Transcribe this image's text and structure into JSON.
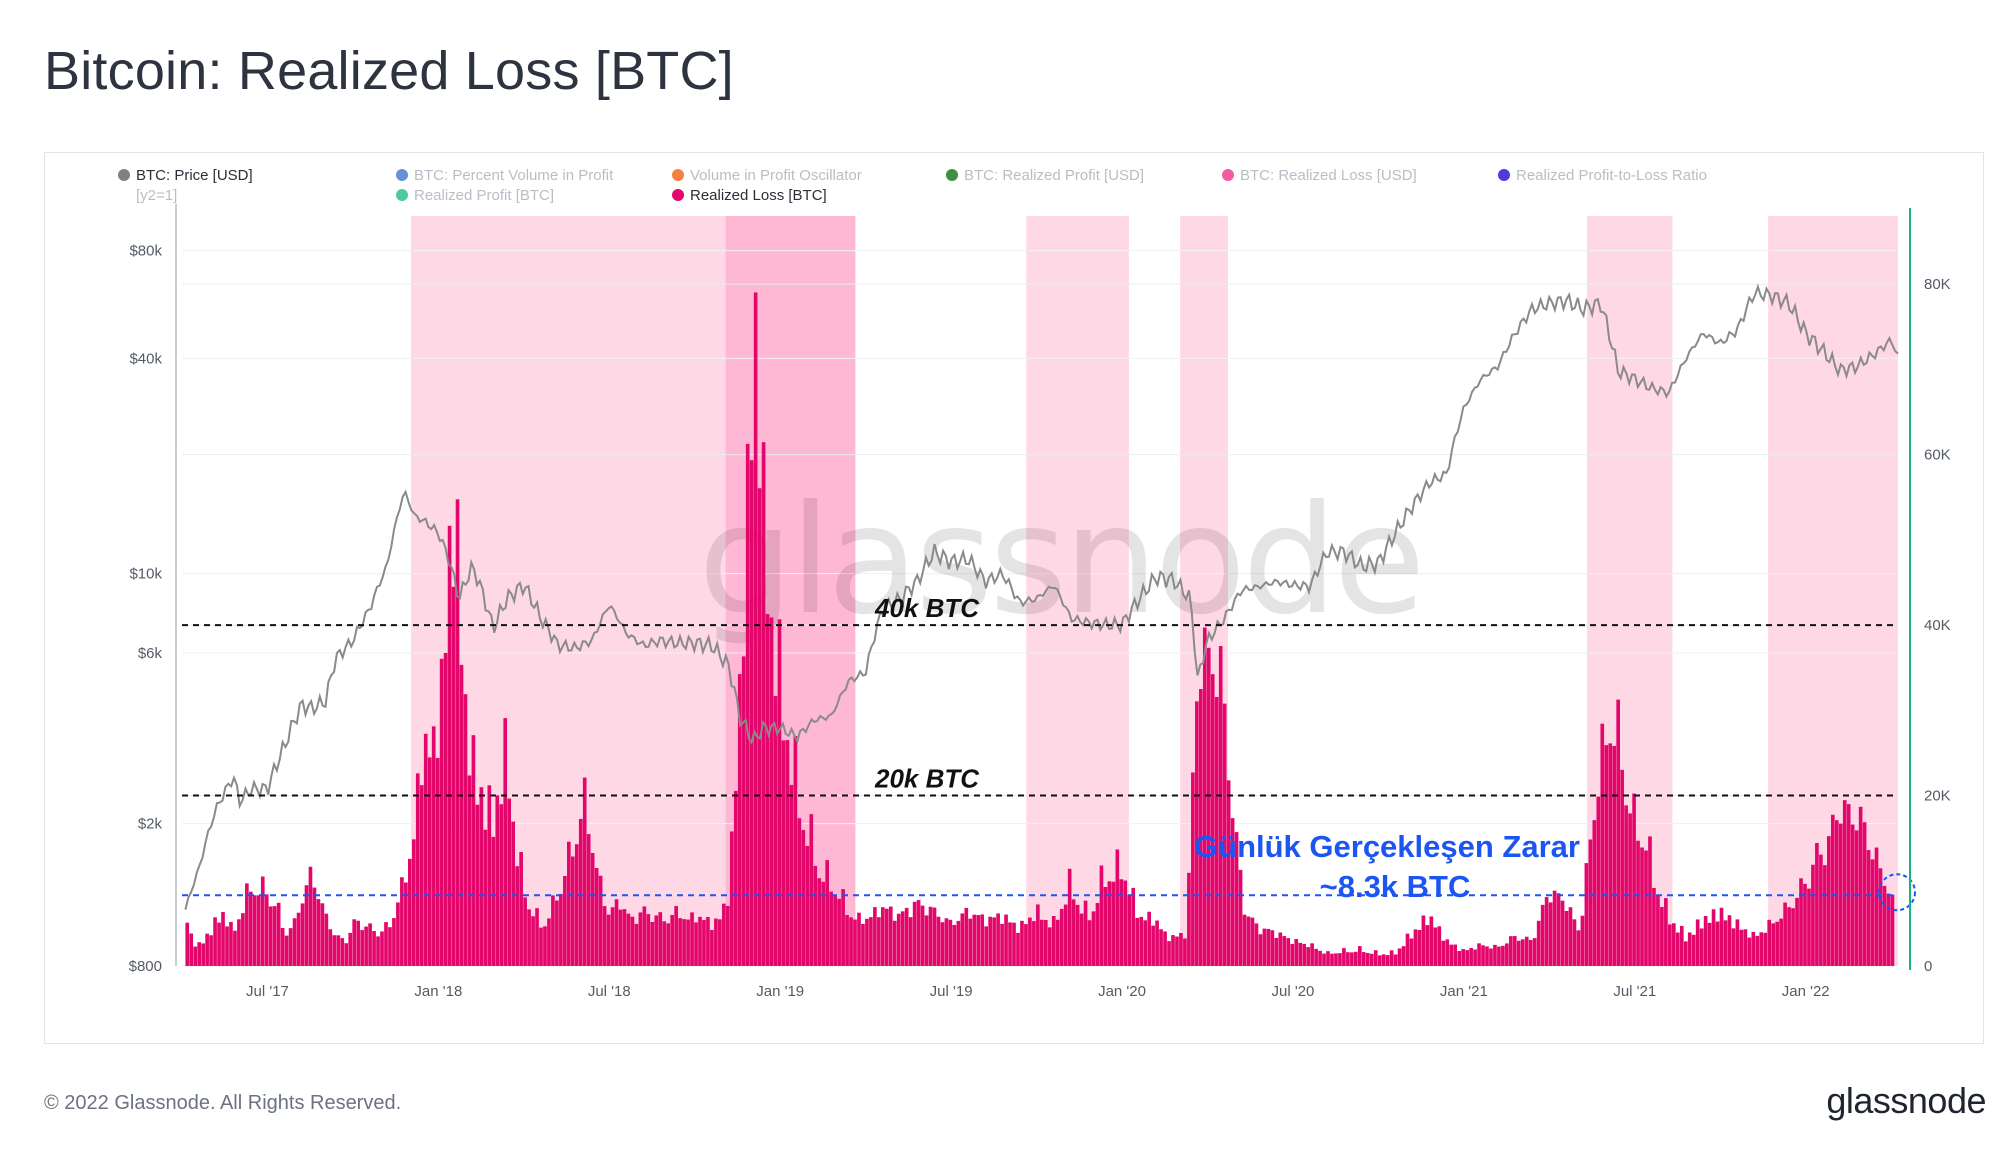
{
  "page": {
    "title": "Bitcoin: Realized Loss [BTC]",
    "copyright": "© 2022 Glassnode. All Rights Reserved.",
    "logo_text": "glassnode",
    "watermark": "glassnode"
  },
  "colors": {
    "price_line": "#8a8a8a",
    "loss_bars": "#e3076b",
    "shade": "#ffc9dd",
    "shade_dark": "#ff9cc3",
    "right_axis": "#19b37d",
    "annotation_blue": "#1c55f2",
    "dashed_black": "#111111"
  },
  "chart_data": {
    "type": "bar",
    "title": "Bitcoin: Realized Loss [BTC]",
    "legend": [
      {
        "label": "BTC: Price [USD]",
        "sub": "[y2=1]",
        "color": "#808080",
        "active": true
      },
      {
        "label": "BTC: Percent Volume in Profit",
        "color": "#4a7fd0",
        "active": false
      },
      {
        "label": "Realized Profit [BTC]",
        "color": "#2ec28b",
        "active": false
      },
      {
        "label": "Volume in Profit Oscillator",
        "color": "#f26b1d",
        "active": false
      },
      {
        "label": "Realized Loss [BTC]",
        "color": "#e3076b",
        "active": true
      },
      {
        "label": "BTC: Realized Profit [USD]",
        "color": "#1e7a1e",
        "active": false
      },
      {
        "label": "BTC: Realized Loss [USD]",
        "color": "#f23f8f",
        "active": false
      },
      {
        "label": "Realized Profit-to-Loss Ratio",
        "color": "#2b1bd6",
        "active": false
      }
    ],
    "x_ticks": [
      "Jul '17",
      "Jan '18",
      "Jul '18",
      "Jan '19",
      "Jul '19",
      "Jan '20",
      "Jul '20",
      "Jan '21",
      "Jul '21",
      "Jan '22"
    ],
    "x_tick_times": [
      2017.5,
      2018.0,
      2018.5,
      2019.0,
      2019.5,
      2020.0,
      2020.5,
      2021.0,
      2021.5,
      2022.0
    ],
    "x_range": [
      2017.25,
      2022.27
    ],
    "y_left_ticks": [
      "$80k",
      "$40k",
      "$10k",
      "$6k",
      "$2k",
      "$800"
    ],
    "y_left_tick_values": [
      80000,
      40000,
      10000,
      6000,
      2000,
      800
    ],
    "y_left_scale": "log",
    "y_left_range": [
      800,
      100000
    ],
    "y_right_ticks": [
      "80K",
      "60K",
      "40K",
      "20K",
      "0"
    ],
    "y_right_tick_values": [
      80000,
      60000,
      40000,
      20000,
      0
    ],
    "y_right_range": [
      0,
      88000
    ],
    "price_series": {
      "name": "BTC: Price [USD]",
      "t": [
        2017.26,
        2017.3,
        2017.35,
        2017.4,
        2017.42,
        2017.45,
        2017.5,
        2017.55,
        2017.6,
        2017.63,
        2017.67,
        2017.7,
        2017.75,
        2017.8,
        2017.85,
        2017.9,
        2017.93,
        2017.96,
        2017.98,
        2018.0,
        2018.03,
        2018.06,
        2018.1,
        2018.13,
        2018.16,
        2018.2,
        2018.25,
        2018.3,
        2018.35,
        2018.4,
        2018.45,
        2018.5,
        2018.55,
        2018.6,
        2018.65,
        2018.7,
        2018.75,
        2018.8,
        2018.85,
        2018.88,
        2018.92,
        2018.95,
        2019.0,
        2019.05,
        2019.1,
        2019.15,
        2019.2,
        2019.25,
        2019.3,
        2019.35,
        2019.4,
        2019.45,
        2019.5,
        2019.55,
        2019.6,
        2019.65,
        2019.7,
        2019.75,
        2019.8,
        2019.85,
        2019.9,
        2019.95,
        2020.0,
        2020.05,
        2020.1,
        2020.15,
        2020.2,
        2020.22,
        2020.25,
        2020.3,
        2020.35,
        2020.4,
        2020.45,
        2020.5,
        2020.55,
        2020.6,
        2020.65,
        2020.7,
        2020.75,
        2020.8,
        2020.85,
        2020.9,
        2020.95,
        2021.0,
        2021.05,
        2021.1,
        2021.15,
        2021.2,
        2021.25,
        2021.3,
        2021.35,
        2021.4,
        2021.45,
        2021.5,
        2021.55,
        2021.6,
        2021.65,
        2021.7,
        2021.75,
        2021.8,
        2021.85,
        2021.9,
        2021.95,
        2022.0,
        2022.05,
        2022.1,
        2022.15,
        2022.2,
        2022.25,
        2022.27
      ],
      "v": [
        1150,
        1500,
        2200,
        2700,
        2300,
        2500,
        2500,
        3300,
        4300,
        4200,
        4400,
        5800,
        6500,
        8000,
        10500,
        17000,
        14500,
        14000,
        13500,
        13000,
        11000,
        8500,
        10500,
        8800,
        7000,
        8500,
        9300,
        7500,
        6300,
        6200,
        6500,
        8200,
        6800,
        6300,
        6500,
        6400,
        6400,
        6300,
        5500,
        4000,
        3400,
        3700,
        3700,
        3500,
        3900,
        4000,
        5000,
        5300,
        8000,
        8500,
        9500,
        11500,
        10800,
        11000,
        9500,
        10000,
        8300,
        8500,
        9300,
        7500,
        7300,
        7200,
        7200,
        8500,
        9800,
        9600,
        8500,
        5000,
        6500,
        7500,
        9000,
        9200,
        9500,
        9300,
        9200,
        11500,
        11500,
        10500,
        10700,
        13000,
        15500,
        18000,
        19000,
        29000,
        35000,
        38000,
        47000,
        55000,
        57000,
        58000,
        55000,
        57000,
        37000,
        35000,
        33000,
        32000,
        40000,
        47000,
        44000,
        48000,
        61000,
        60000,
        57000,
        47000,
        42000,
        37000,
        38000,
        41000,
        45000,
        40500
      ]
    },
    "loss_series": {
      "name": "Realized Loss [BTC]",
      "t": [
        2017.26,
        2017.28,
        2017.3,
        2017.33,
        2017.37,
        2017.4,
        2017.45,
        2017.5,
        2017.53,
        2017.55,
        2017.58,
        2017.6,
        2017.63,
        2017.67,
        2017.7,
        2017.73,
        2017.76,
        2017.8,
        2017.83,
        2017.86,
        2017.9,
        2017.93,
        2017.96,
        2017.99,
        2018.02,
        2018.05,
        2018.08,
        2018.1,
        2018.13,
        2018.16,
        2018.2,
        2018.23,
        2018.26,
        2018.3,
        2018.33,
        2018.36,
        2018.4,
        2018.43,
        2018.46,
        2018.5,
        2018.53,
        2018.56,
        2018.6,
        2018.63,
        2018.67,
        2018.7,
        2018.73,
        2018.76,
        2018.8,
        2018.83,
        2018.85,
        2018.87,
        2018.89,
        2018.91,
        2018.93,
        2018.95,
        2018.98,
        2019.01,
        2019.04,
        2019.07,
        2019.1,
        2019.13,
        2019.17,
        2019.2,
        2019.23,
        2019.27,
        2019.3,
        2019.35,
        2019.4,
        2019.45,
        2019.5,
        2019.55,
        2019.6,
        2019.65,
        2019.7,
        2019.75,
        2019.8,
        2019.85,
        2019.9,
        2019.95,
        2020.0,
        2020.05,
        2020.1,
        2020.13,
        2020.16,
        2020.19,
        2020.21,
        2020.23,
        2020.26,
        2020.29,
        2020.32,
        2020.36,
        2020.4,
        2020.45,
        2020.5,
        2020.55,
        2020.6,
        2020.65,
        2020.7,
        2020.75,
        2020.8,
        2020.85,
        2020.9,
        2020.95,
        2021.0,
        2021.05,
        2021.1,
        2021.15,
        2021.2,
        2021.25,
        2021.3,
        2021.34,
        2021.37,
        2021.4,
        2021.43,
        2021.46,
        2021.5,
        2021.53,
        2021.56,
        2021.6,
        2021.65,
        2021.7,
        2021.75,
        2021.8,
        2021.85,
        2021.9,
        2021.95,
        2022.0,
        2022.03,
        2022.06,
        2022.1,
        2022.13,
        2022.17,
        2022.2,
        2022.23,
        2022.26
      ],
      "v": [
        7500,
        3000,
        2500,
        4000,
        6500,
        4000,
        9500,
        9000,
        7000,
        4000,
        5000,
        8000,
        11000,
        6000,
        3500,
        3000,
        5500,
        4500,
        4000,
        5000,
        10000,
        16000,
        28000,
        25000,
        40000,
        57000,
        30000,
        25000,
        20000,
        18000,
        26000,
        14000,
        8000,
        5000,
        6500,
        10000,
        15000,
        20000,
        12000,
        6000,
        8000,
        5500,
        6500,
        6000,
        5500,
        6500,
        5500,
        6000,
        5000,
        6000,
        9000,
        22000,
        40000,
        60000,
        80000,
        55000,
        40000,
        32000,
        24000,
        18000,
        14000,
        11000,
        9000,
        6500,
        5500,
        6000,
        7000,
        6000,
        7500,
        6500,
        5000,
        6500,
        5500,
        6000,
        4500,
        6500,
        5000,
        10000,
        6000,
        11000,
        12000,
        6000,
        5500,
        3500,
        3500,
        4000,
        25000,
        38000,
        36000,
        35000,
        20000,
        6500,
        4500,
        4000,
        3000,
        2500,
        1500,
        1800,
        2000,
        1500,
        1600,
        4000,
        6000,
        3000,
        1800,
        2500,
        2200,
        3500,
        3000,
        9000,
        7500,
        4000,
        15000,
        24000,
        30000,
        26000,
        17000,
        16000,
        10000,
        6000,
        3500,
        5500,
        6500,
        5000,
        3500,
        5000,
        7000,
        10000,
        13000,
        14000,
        19000,
        18000,
        17000,
        13000,
        11000,
        6500
      ]
    },
    "regime_shades": [
      {
        "start": 2017.92,
        "end": 2018.84,
        "tone": "light"
      },
      {
        "start": 2018.84,
        "end": 2019.22,
        "tone": "dark"
      },
      {
        "start": 2019.72,
        "end": 2020.02,
        "tone": "light"
      },
      {
        "start": 2020.17,
        "end": 2020.31,
        "tone": "light"
      },
      {
        "start": 2021.36,
        "end": 2021.61,
        "tone": "light"
      },
      {
        "start": 2021.89,
        "end": 2022.27,
        "tone": "light"
      }
    ],
    "reference_lines": [
      {
        "value": 40000,
        "label": "40k BTC",
        "style": "dashed-black"
      },
      {
        "value": 20000,
        "label": "20k BTC",
        "style": "dashed-black"
      },
      {
        "value": 8300,
        "label": "",
        "style": "dashed-blue"
      }
    ],
    "annotation": {
      "line1": "Günlük Gerçekleşen Zarar",
      "line2": "~8.3k BTC"
    },
    "grid": true
  }
}
